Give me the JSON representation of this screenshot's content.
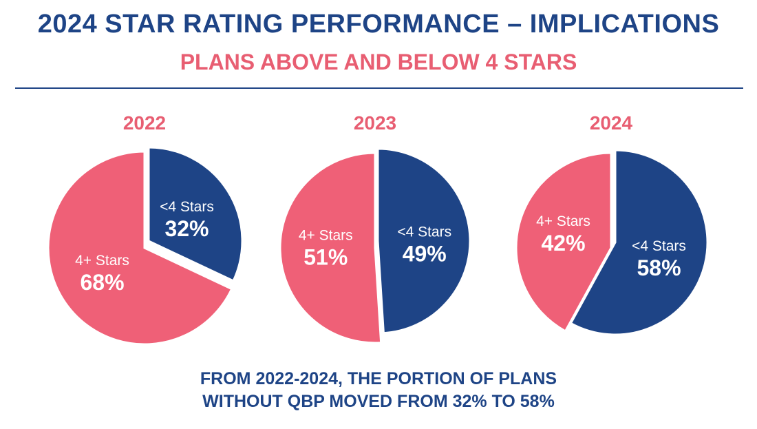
{
  "header": {
    "title": "2024 STAR RATING PERFORMANCE – IMPLICATIONS",
    "subtitle": "PLANS ABOVE AND BELOW 4 STARS"
  },
  "footer": {
    "line1": "FROM 2022-2024, THE PORTION OF PLANS",
    "line2": "WITHOUT QBP MOVED FROM 32% TO 58%"
  },
  "colors": {
    "navy": "#1e4486",
    "pink": "#ef6077",
    "title_pink": "#e85e72"
  },
  "chart_data": [
    {
      "type": "pie",
      "title": "2022",
      "slices": [
        {
          "label": "<4 Stars",
          "value": 32,
          "display": "32%",
          "color": "#1e4486"
        },
        {
          "label": "4+ Stars",
          "value": 68,
          "display": "68%",
          "color": "#ef6077"
        }
      ]
    },
    {
      "type": "pie",
      "title": "2023",
      "slices": [
        {
          "label": "<4 Stars",
          "value": 49,
          "display": "49%",
          "color": "#1e4486"
        },
        {
          "label": "4+ Stars",
          "value": 51,
          "display": "51%",
          "color": "#ef6077"
        }
      ]
    },
    {
      "type": "pie",
      "title": "2024",
      "slices": [
        {
          "label": "<4 Stars",
          "value": 58,
          "display": "58%",
          "color": "#1e4486"
        },
        {
          "label": "4+ Stars",
          "value": 42,
          "display": "42%",
          "color": "#ef6077"
        }
      ]
    }
  ]
}
